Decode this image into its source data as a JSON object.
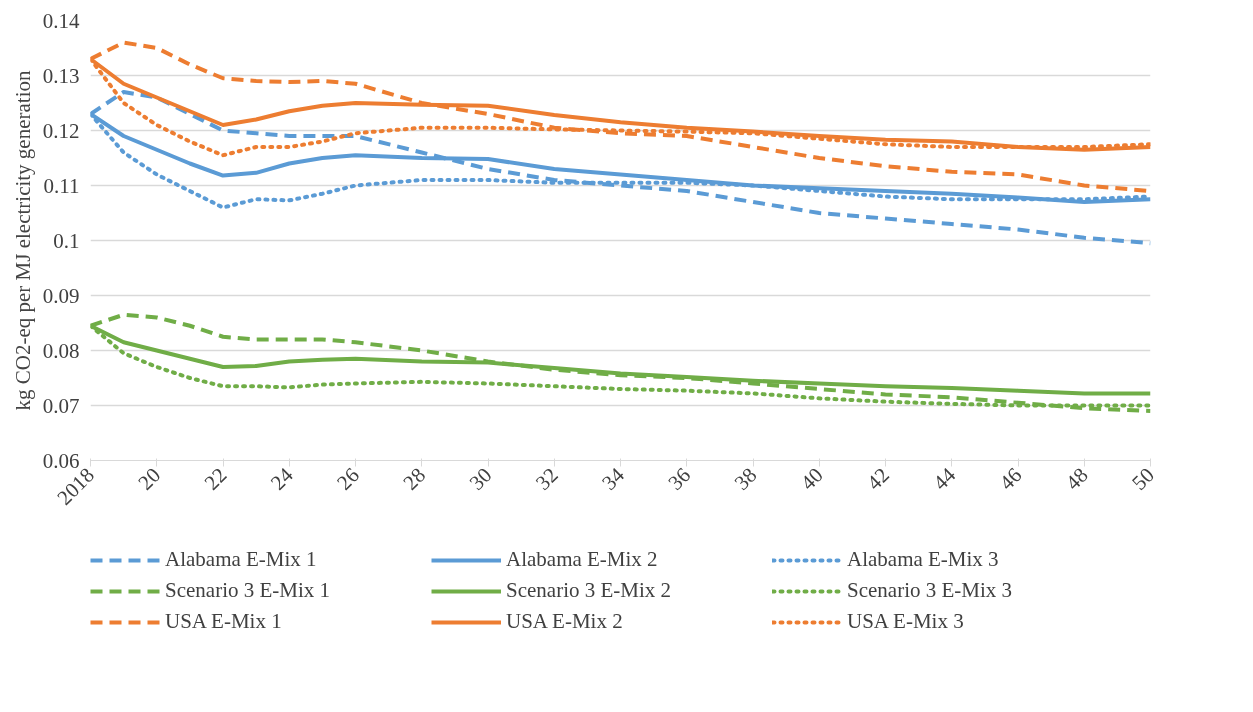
{
  "chart_data": {
    "type": "line",
    "ylabel": "kg CO2-eq per MJ electricity generation",
    "x": [
      2018,
      2019,
      2020,
      2021,
      2022,
      2023,
      2024,
      2025,
      2026,
      2028,
      2030,
      2032,
      2034,
      2036,
      2038,
      2040,
      2042,
      2044,
      2046,
      2048,
      2050
    ],
    "xlim": [
      2018,
      2050
    ],
    "xticks": [
      2018,
      {
        "value": 2020,
        "label": "20"
      },
      {
        "value": 2022,
        "label": "22"
      },
      {
        "value": 2024,
        "label": "24"
      },
      {
        "value": 2026,
        "label": "26"
      },
      {
        "value": 2028,
        "label": "28"
      },
      {
        "value": 2030,
        "label": "30"
      },
      {
        "value": 2032,
        "label": "32"
      },
      {
        "value": 2034,
        "label": "34"
      },
      {
        "value": 2036,
        "label": "36"
      },
      {
        "value": 2038,
        "label": "38"
      },
      {
        "value": 2040,
        "label": "40"
      },
      {
        "value": 2042,
        "label": "42"
      },
      {
        "value": 2044,
        "label": "44"
      },
      {
        "value": 2046,
        "label": "46"
      },
      {
        "value": 2048,
        "label": "48"
      },
      {
        "value": 2050,
        "label": "50"
      }
    ],
    "ylim": [
      0.06,
      0.14
    ],
    "yticks": [
      0.06,
      0.07,
      0.08,
      0.09,
      0.1,
      0.11,
      0.12,
      0.13,
      0.14
    ],
    "grid": "y",
    "legend": "bottom",
    "marker": "none",
    "series": [
      {
        "name": "Alabama E-Mix 1",
        "color": "#5b9bd5",
        "line_style": "dashed",
        "values": [
          0.123,
          0.127,
          0.126,
          0.123,
          0.12,
          0.1195,
          0.119,
          0.119,
          0.119,
          0.116,
          0.113,
          0.111,
          0.11,
          0.109,
          0.107,
          0.105,
          0.104,
          0.103,
          0.102,
          0.1005,
          0.0995
        ]
      },
      {
        "name": "Alabama E-Mix 2",
        "color": "#5b9bd5",
        "line_style": "solid",
        "values": [
          0.123,
          0.119,
          0.1165,
          0.114,
          0.1118,
          0.1123,
          0.114,
          0.115,
          0.1155,
          0.115,
          0.1148,
          0.113,
          0.112,
          0.111,
          0.11,
          0.1095,
          0.109,
          0.1085,
          0.1078,
          0.107,
          0.1075
        ]
      },
      {
        "name": "Alabama E-Mix 3",
        "color": "#5b9bd5",
        "line_style": "dotted",
        "values": [
          0.123,
          0.116,
          0.112,
          0.109,
          0.106,
          0.1075,
          0.1073,
          0.1085,
          0.11,
          0.111,
          0.111,
          0.1105,
          0.1105,
          0.1105,
          0.11,
          0.109,
          0.108,
          0.1075,
          0.1075,
          0.1075,
          0.108
        ]
      },
      {
        "name": "Scenario 3 E-Mix 1",
        "color": "#70ad47",
        "line_style": "dashed",
        "values": [
          0.0845,
          0.0865,
          0.086,
          0.0845,
          0.0825,
          0.082,
          0.082,
          0.082,
          0.0815,
          0.08,
          0.078,
          0.0765,
          0.0755,
          0.075,
          0.074,
          0.073,
          0.072,
          0.0715,
          0.0705,
          0.0695,
          0.069
        ]
      },
      {
        "name": "Scenario 3 E-Mix 2",
        "color": "#70ad47",
        "line_style": "solid",
        "values": [
          0.0845,
          0.0815,
          0.08,
          0.0785,
          0.077,
          0.0772,
          0.078,
          0.0783,
          0.0785,
          0.078,
          0.0778,
          0.0768,
          0.0758,
          0.0752,
          0.0745,
          0.074,
          0.0735,
          0.0732,
          0.0727,
          0.0722,
          0.0722
        ]
      },
      {
        "name": "Scenario 3 E-Mix 3",
        "color": "#70ad47",
        "line_style": "dotted",
        "values": [
          0.0845,
          0.0795,
          0.077,
          0.075,
          0.0735,
          0.0735,
          0.0733,
          0.0738,
          0.074,
          0.0743,
          0.074,
          0.0735,
          0.073,
          0.0727,
          0.0722,
          0.0713,
          0.0707,
          0.0703,
          0.07,
          0.07,
          0.07
        ]
      },
      {
        "name": "USA E-Mix 1",
        "color": "#ed7d31",
        "line_style": "dashed",
        "values": [
          0.133,
          0.136,
          0.135,
          0.132,
          0.1295,
          0.129,
          0.1288,
          0.129,
          0.1285,
          0.125,
          0.123,
          0.1205,
          0.1195,
          0.119,
          0.117,
          0.115,
          0.1135,
          0.1125,
          0.112,
          0.11,
          0.109
        ]
      },
      {
        "name": "USA E-Mix 2",
        "color": "#ed7d31",
        "line_style": "solid",
        "values": [
          0.133,
          0.1285,
          0.126,
          0.1235,
          0.121,
          0.122,
          0.1235,
          0.1245,
          0.125,
          0.1247,
          0.1245,
          0.1228,
          0.1215,
          0.1205,
          0.1198,
          0.119,
          0.1183,
          0.118,
          0.117,
          0.1165,
          0.117
        ]
      },
      {
        "name": "USA E-Mix 3",
        "color": "#ed7d31",
        "line_style": "dotted",
        "values": [
          0.133,
          0.125,
          0.121,
          0.118,
          0.1155,
          0.117,
          0.117,
          0.118,
          0.1195,
          0.1205,
          0.1205,
          0.1202,
          0.12,
          0.1198,
          0.1195,
          0.1185,
          0.1175,
          0.117,
          0.117,
          0.117,
          0.1175
        ]
      }
    ]
  }
}
